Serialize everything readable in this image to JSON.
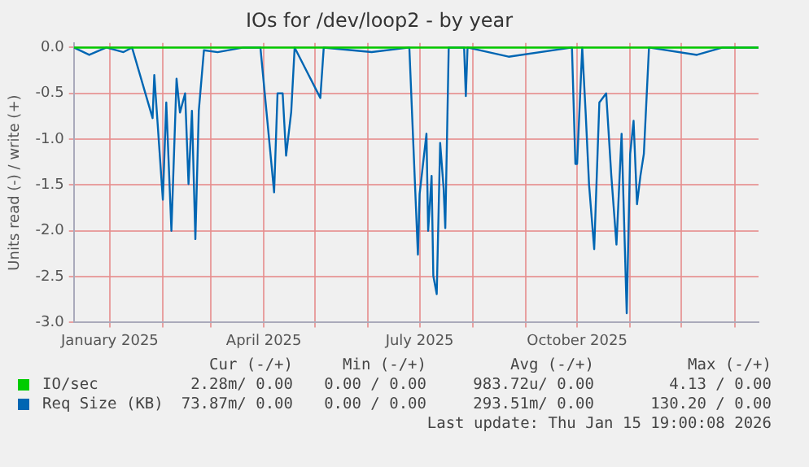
{
  "chart_data": {
    "type": "line",
    "title": "IOs for /dev/loop2 - by year",
    "ylabel": "Units read (-) / write (+)",
    "x": [
      "2024-12-11",
      "2024-12-20",
      "2024-12-30",
      "2025-01-09",
      "2025-01-14",
      "2025-01-26",
      "2025-01-27",
      "2025-02-01",
      "2025-02-03",
      "2025-02-06",
      "2025-02-09",
      "2025-02-11",
      "2025-02-14",
      "2025-02-16",
      "2025-02-18",
      "2025-02-20",
      "2025-02-22",
      "2025-02-25",
      "2025-03-05",
      "2025-03-20",
      "2025-03-30",
      "2025-04-07",
      "2025-04-09",
      "2025-04-12",
      "2025-04-14",
      "2025-04-17",
      "2025-04-19",
      "2025-05-04",
      "2025-05-06",
      "2025-06-03",
      "2025-06-25",
      "2025-06-30",
      "2025-07-01",
      "2025-07-05",
      "2025-07-06",
      "2025-07-08",
      "2025-07-09",
      "2025-07-11",
      "2025-07-13",
      "2025-07-15",
      "2025-07-16",
      "2025-07-18",
      "2025-07-27",
      "2025-07-28",
      "2025-07-29",
      "2025-08-22",
      "2025-09-28",
      "2025-09-30",
      "2025-10-01",
      "2025-10-04",
      "2025-10-06",
      "2025-10-08",
      "2025-10-11",
      "2025-10-14",
      "2025-10-18",
      "2025-10-21",
      "2025-10-24",
      "2025-10-27",
      "2025-10-30",
      "2025-11-01",
      "2025-11-03",
      "2025-11-05",
      "2025-11-07",
      "2025-11-09",
      "2025-11-12",
      "2025-12-10",
      "2025-12-25",
      "2026-01-15"
    ],
    "series": [
      {
        "name": "IO/sec",
        "color": "#00cc00",
        "x": [
          "2024-12-11",
          "2026-01-15"
        ],
        "values": [
          0,
          0
        ]
      },
      {
        "name": "Req Size (KB)",
        "color": "#0066b3",
        "values": [
          0,
          -0.08,
          0,
          -0.05,
          0,
          -0.77,
          -0.3,
          -1.66,
          -0.6,
          -2.0,
          -0.34,
          -0.71,
          -0.5,
          -1.49,
          -0.69,
          -2.09,
          -0.69,
          -0.03,
          -0.05,
          0,
          0,
          -1.58,
          -0.5,
          -0.5,
          -1.18,
          -0.7,
          0,
          -0.55,
          0,
          -0.05,
          0,
          -2.26,
          -1.6,
          -0.94,
          -2.0,
          -1.4,
          -2.49,
          -2.69,
          -1.04,
          -1.53,
          -1.97,
          0,
          0,
          -0.53,
          0,
          -0.1,
          0,
          -1.27,
          -1.27,
          0,
          -0.71,
          -1.5,
          -2.2,
          -0.6,
          -0.5,
          -1.4,
          -2.15,
          -0.94,
          -2.9,
          -1.16,
          -0.8,
          -1.71,
          -1.4,
          -1.16,
          0,
          -0.08,
          0,
          0
        ]
      }
    ],
    "xlim": [
      "2024-12-11",
      "2026-01-15"
    ],
    "xticks": [
      {
        "value": "2025-01-01",
        "label": "January 2025"
      },
      {
        "value": "2025-02-01",
        "label": null
      },
      {
        "value": "2025-03-01",
        "label": null
      },
      {
        "value": "2025-04-01",
        "label": "April 2025"
      },
      {
        "value": "2025-05-01",
        "label": null
      },
      {
        "value": "2025-06-01",
        "label": null
      },
      {
        "value": "2025-07-01",
        "label": "July 2025"
      },
      {
        "value": "2025-08-01",
        "label": null
      },
      {
        "value": "2025-09-01",
        "label": null
      },
      {
        "value": "2025-10-01",
        "label": "October 2025"
      },
      {
        "value": "2025-11-01",
        "label": null
      },
      {
        "value": "2025-12-01",
        "label": null
      },
      {
        "value": "2026-01-01",
        "label": null
      }
    ],
    "ylim": [
      -3,
      0.05
    ],
    "yticks": [
      {
        "value": -3,
        "label": "-3.0"
      },
      {
        "value": -2.5,
        "label": "-2.5"
      },
      {
        "value": -2,
        "label": "-2.0"
      },
      {
        "value": -1.5,
        "label": "-1.5"
      },
      {
        "value": -1,
        "label": "-1.0"
      },
      {
        "value": -0.5,
        "label": "-0.5"
      },
      {
        "value": 0,
        "label": "0.0"
      }
    ],
    "grid": true,
    "legend": "bottom",
    "marker": "none",
    "line_style": "solid",
    "annotations": [
      "Cur (-/+)",
      "Min (-/+)",
      "Avg (-/+)",
      "Max (-/+)",
      "2.28m/ 0.00",
      "0.00 / 0.00",
      "983.72u/ 0.00",
      "4.13 / 0.00",
      "73.87m/ 0.00",
      "0.00 / 0.00",
      "293.51m/ 0.00",
      "130.20 / 0.00",
      "Last update: Thu Jan 15 19:00:08 2026"
    ]
  }
}
